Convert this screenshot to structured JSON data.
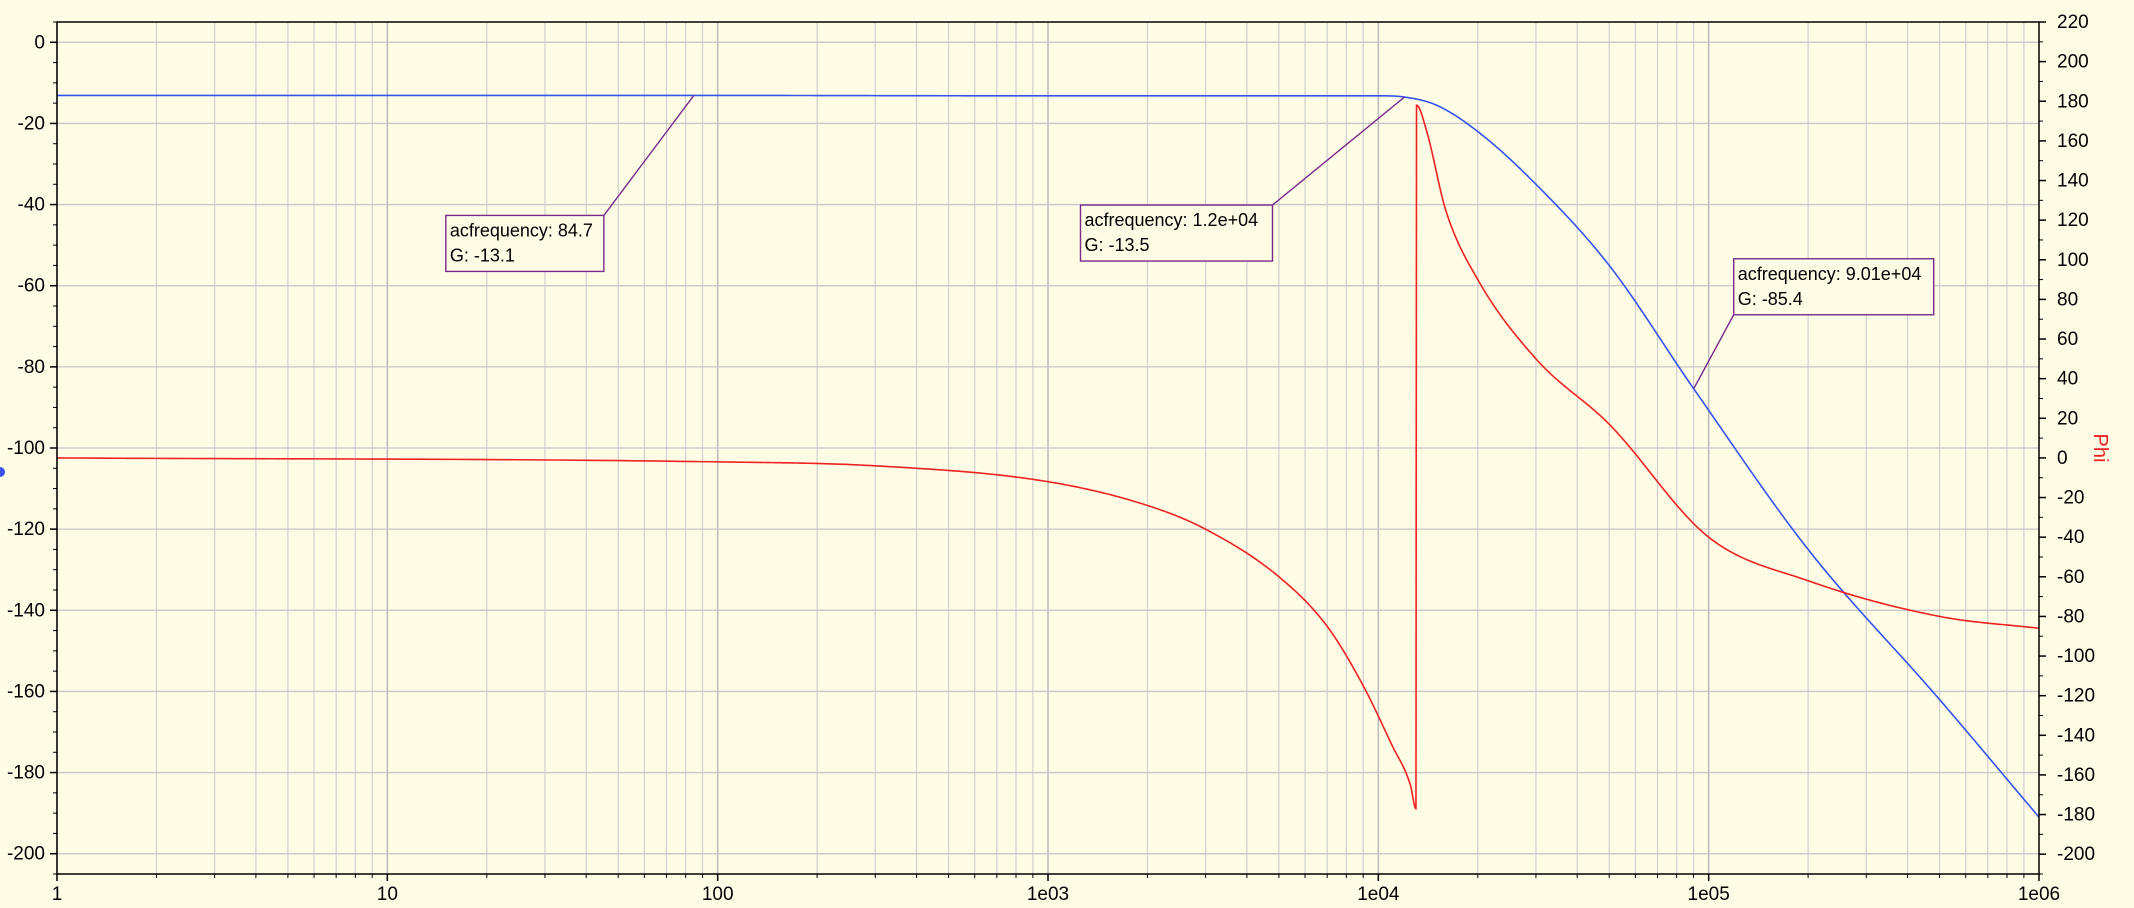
{
  "chart_data": {
    "type": "line",
    "x_scale": "log",
    "xlim": [
      1,
      1000000
    ],
    "ylim_left": [
      -205,
      5
    ],
    "ylim_right": [
      -210,
      220
    ],
    "grid": true,
    "x_ticks": [
      {
        "value": 1,
        "label": "1"
      },
      {
        "value": 10,
        "label": "10"
      },
      {
        "value": 100,
        "label": "100"
      },
      {
        "value": 1000,
        "label": "1e03"
      },
      {
        "value": 10000,
        "label": "1e04"
      },
      {
        "value": 100000,
        "label": "1e05"
      },
      {
        "value": 1000000,
        "label": "1e06"
      }
    ],
    "y_left_ticks": [
      0,
      -20,
      -40,
      -60,
      -80,
      -100,
      -120,
      -140,
      -160,
      -180,
      -200
    ],
    "y_right_ticks": [
      220,
      200,
      180,
      160,
      140,
      120,
      100,
      80,
      60,
      40,
      20,
      0,
      -20,
      -40,
      -60,
      -80,
      -100,
      -120,
      -140,
      -160,
      -180,
      -200
    ],
    "ylabel_right": "Phi",
    "series": [
      {
        "name": "G",
        "axis": "left",
        "color": "#3355ee",
        "x": [
          1,
          100,
          1000,
          5000,
          10000,
          12000,
          15000,
          20000,
          30000,
          50000,
          90100,
          200000,
          500000,
          1000000
        ],
        "y": [
          -13.1,
          -13.1,
          -13.2,
          -13.2,
          -13.2,
          -13.5,
          -15.5,
          -22,
          -35,
          -55,
          -85.4,
          -125,
          -162,
          -191
        ]
      },
      {
        "name": "Phi",
        "axis": "right",
        "color": "#ee2222",
        "x": [
          1,
          100,
          300,
          1000,
          2000,
          3000,
          5000,
          7000,
          9000,
          11000,
          12500,
          13000,
          13050,
          14000,
          16000,
          20000,
          30000,
          50000,
          100000,
          200000,
          500000,
          1000000
        ],
        "y": [
          0,
          -2,
          -4,
          -12,
          -24,
          -36,
          -60,
          -85,
          -115,
          -145,
          -165,
          -177,
          178,
          165,
          125,
          90,
          50,
          17,
          -40,
          -62,
          -80,
          -86
        ]
      }
    ],
    "annotations": [
      {
        "lines": [
          "acfrequency: 84.7",
          "G: -13.1"
        ],
        "x": 84.7,
        "y": -13.1
      },
      {
        "lines": [
          "acfrequency: 1.2e+04",
          "G: -13.5"
        ],
        "x": 12000,
        "y": -13.5
      },
      {
        "lines": [
          "acfrequency: 9.01e+04",
          "G: -85.4"
        ],
        "x": 90100,
        "y": -85.4
      }
    ]
  }
}
